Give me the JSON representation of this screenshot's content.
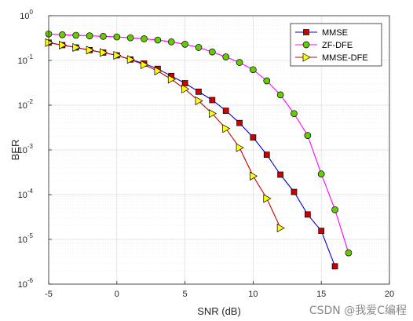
{
  "chart_data": {
    "type": "line",
    "xlabel": "SNR (dB)",
    "ylabel": "BER",
    "xlim": [
      -5,
      20
    ],
    "ylim": [
      1e-06,
      1
    ],
    "yscale": "log",
    "grid": true,
    "minor_grid": true,
    "legend_position": "top-right",
    "x_ticks": [
      "-5",
      "0",
      "5",
      "10",
      "15",
      "20"
    ],
    "y_ticks": [
      {
        "base": "10",
        "exp": "0"
      },
      {
        "base": "10",
        "exp": "-1"
      },
      {
        "base": "10",
        "exp": "-2"
      },
      {
        "base": "10",
        "exp": "-3"
      },
      {
        "base": "10",
        "exp": "-4"
      },
      {
        "base": "10",
        "exp": "-5"
      },
      {
        "base": "10",
        "exp": "-6"
      }
    ],
    "series": [
      {
        "name": "MMSE",
        "color": "#0000cc",
        "marker": "square",
        "marker_color": "#cc0000",
        "x": [
          -5,
          -4,
          -3,
          -2,
          -1,
          0,
          1,
          2,
          3,
          4,
          5,
          6,
          7,
          8,
          9,
          10,
          11,
          12,
          13,
          14,
          15,
          16
        ],
        "y": [
          0.25,
          0.22,
          0.195,
          0.17,
          0.15,
          0.13,
          0.105,
          0.085,
          0.065,
          0.045,
          0.031,
          0.02,
          0.013,
          0.0075,
          0.004,
          0.0019,
          0.00078,
          0.00028,
          0.000115,
          3.6e-05,
          1.55e-05,
          2.5e-06
        ]
      },
      {
        "name": "ZF-DFE",
        "color": "#ff00ff",
        "marker": "circle",
        "marker_color": "#66cc00",
        "x": [
          -5,
          -4,
          -3,
          -2,
          -1,
          0,
          1,
          2,
          3,
          4,
          5,
          6,
          7,
          8,
          9,
          10,
          11,
          12,
          13,
          14,
          15,
          16,
          17
        ],
        "y": [
          0.39,
          0.375,
          0.365,
          0.355,
          0.345,
          0.335,
          0.32,
          0.305,
          0.285,
          0.26,
          0.23,
          0.195,
          0.155,
          0.12,
          0.09,
          0.062,
          0.035,
          0.017,
          0.0065,
          0.0021,
          0.00029,
          4.6e-05,
          5e-06
        ]
      },
      {
        "name": "MMSE-DFE",
        "color": "#cc0000",
        "marker": "triangle-right",
        "marker_color": "#ffff00",
        "x": [
          -5,
          -4,
          -3,
          -2,
          -1,
          0,
          1,
          2,
          3,
          4,
          5,
          6,
          7,
          8,
          9,
          10,
          11,
          12
        ],
        "y": [
          0.25,
          0.22,
          0.195,
          0.17,
          0.15,
          0.13,
          0.105,
          0.08,
          0.058,
          0.038,
          0.023,
          0.0125,
          0.0065,
          0.003,
          0.00112,
          0.00026,
          8.2e-05,
          1.8e-05
        ]
      }
    ]
  },
  "watermark": "CSDN @我爱C编程"
}
